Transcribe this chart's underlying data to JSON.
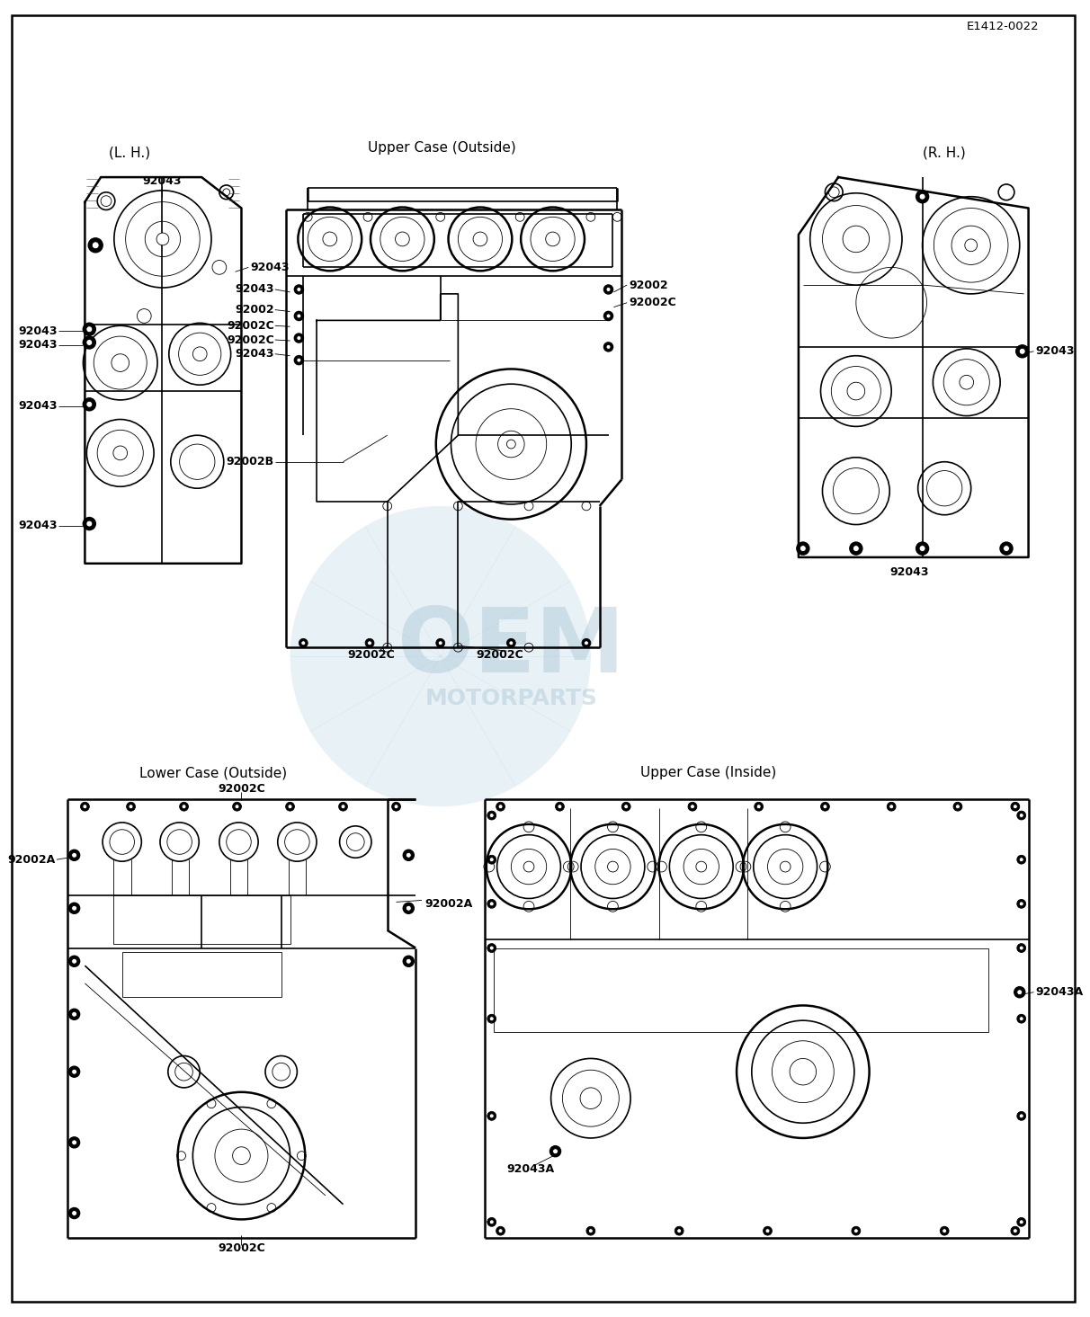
{
  "bg_color": "#ffffff",
  "line_color": "#000000",
  "page_id": "E1412-0022",
  "sections": {
    "upper_left_label": "(L. H.)",
    "upper_center_label": "Upper Case (Outside)",
    "upper_right_label": "(R. H.)",
    "lower_left_label": "Lower Case (Outside)",
    "lower_right_label": "Upper Case (Inside)"
  },
  "watermark_text1": "OEM",
  "watermark_text2": "MOTORPARTS",
  "watermark_color": "#c5dce8",
  "lw_outer": 1.8,
  "lw_main": 1.2,
  "lw_thin": 0.6,
  "lw_med": 0.9,
  "label_fs": 9.0,
  "header_fs": 11.0,
  "bold_labels": [
    "92043",
    "92043A",
    "92002",
    "92002A",
    "92002B",
    "92002C"
  ]
}
